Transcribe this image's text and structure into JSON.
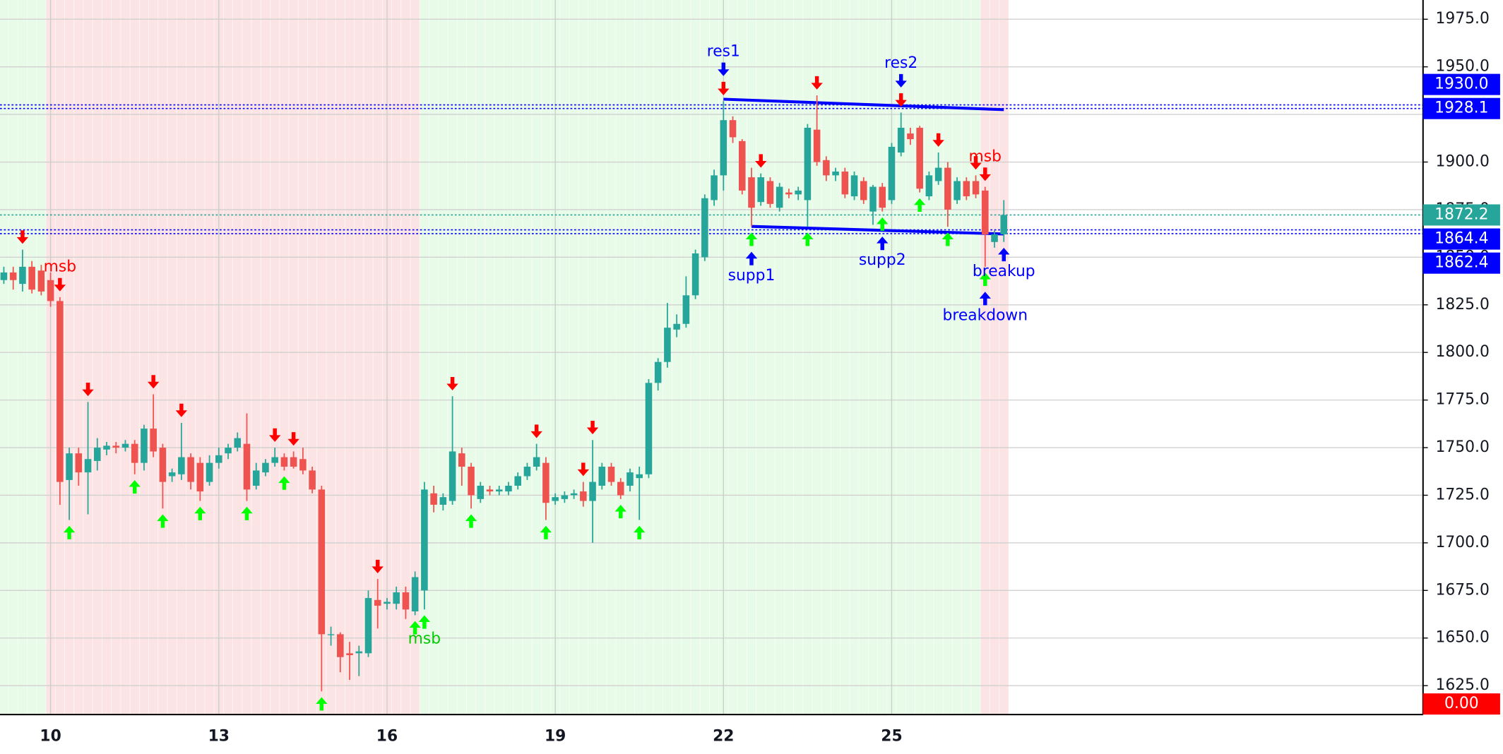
{
  "chart_data": {
    "type": "candlestick",
    "categories": [
      null,
      null,
      null,
      null,
      null,
      "10",
      null,
      null,
      null,
      null,
      null,
      null,
      null,
      null,
      null,
      null,
      null,
      null,
      null,
      null,
      null,
      null,
      null,
      "13",
      null,
      null,
      null,
      null,
      null,
      null,
      null,
      null,
      null,
      null,
      null,
      null,
      null,
      null,
      null,
      null,
      null,
      "16",
      null,
      null,
      null,
      null,
      null,
      null,
      null,
      null,
      null,
      null,
      null,
      null,
      null,
      null,
      null,
      null,
      null,
      "19",
      null,
      null,
      null,
      null,
      null,
      null,
      null,
      null,
      null,
      null,
      null,
      null,
      null,
      null,
      null,
      null,
      null,
      "22",
      null,
      null,
      null,
      null,
      null,
      null,
      null,
      null,
      null,
      null,
      null,
      null,
      null,
      null,
      null,
      null,
      null,
      "25",
      null,
      null,
      null,
      null,
      null,
      null,
      null,
      null,
      null,
      null,
      null,
      null
    ],
    "open": [
      1838,
      1842,
      1836,
      1845,
      1843,
      1838,
      1827,
      1733,
      1747,
      1737,
      1743,
      1749,
      1751,
      1750,
      1752,
      1742,
      1760,
      1750,
      1735,
      1736,
      1745,
      1742,
      1732,
      1742,
      1747,
      1750,
      1752,
      1730,
      1737,
      1742,
      1745,
      1745,
      1744,
      1738,
      1728,
      1652,
      1652,
      1642,
      1642,
      1642,
      1670,
      1668,
      1668,
      1674,
      1664,
      1675,
      1726,
      1720,
      1722,
      1747,
      1740,
      1723,
      1728,
      1727,
      1727,
      1730,
      1735,
      1740,
      1742,
      1722,
      1723,
      1725,
      1727,
      1722,
      1730,
      1740,
      1732,
      1730,
      1734,
      1736,
      1784,
      1795,
      1812,
      1815,
      1830,
      1850,
      1880,
      1893,
      1922,
      1911,
      1892,
      1879,
      1890,
      1876,
      1884,
      1883,
      1880,
      1917,
      1901,
      1893,
      1895,
      1882,
      1890,
      1874,
      1887,
      1880,
      1905,
      1915,
      1918,
      1882,
      1890,
      1897,
      1880,
      1890,
      1890,
      1885,
      1858,
      1862
    ],
    "high": [
      1845,
      1845,
      1854,
      1848,
      1846,
      1842,
      1829,
      1750,
      1750,
      1774,
      1755,
      1753,
      1753,
      1754,
      1754,
      1762,
      1778,
      1752,
      1739,
      1763,
      1747,
      1745,
      1746,
      1750,
      1752,
      1758,
      1768,
      1742,
      1744,
      1750,
      1747,
      1748,
      1750,
      1740,
      1730,
      1656,
      1653,
      1648,
      1646,
      1675,
      1681,
      1671,
      1677,
      1677,
      1685,
      1732,
      1730,
      1726,
      1777,
      1750,
      1742,
      1732,
      1730,
      1730,
      1732,
      1737,
      1742,
      1752,
      1745,
      1726,
      1727,
      1728,
      1732,
      1754,
      1742,
      1742,
      1734,
      1739,
      1740,
      1786,
      1797,
      1826,
      1820,
      1840,
      1854,
      1883,
      1896,
      1932,
      1924,
      1912,
      1897,
      1894,
      1892,
      1889,
      1886,
      1887,
      1920,
      1935,
      1903,
      1897,
      1897,
      1895,
      1892,
      1888,
      1889,
      1910,
      1926,
      1918,
      1919,
      1895,
      1905,
      1900,
      1892,
      1892,
      1893,
      1887,
      1864,
      1880
    ],
    "low": [
      1836,
      1833,
      1832,
      1831,
      1830,
      1824,
      1720,
      1712,
      1730,
      1715,
      1738,
      1746,
      1747,
      1748,
      1736,
      1738,
      1745,
      1718,
      1732,
      1733,
      1728,
      1722,
      1730,
      1739,
      1744,
      1748,
      1722,
      1728,
      1735,
      1740,
      1738,
      1739,
      1736,
      1726,
      1622,
      1646,
      1632,
      1628,
      1630,
      1640,
      1655,
      1665,
      1665,
      1660,
      1662,
      1665,
      1716,
      1717,
      1720,
      1730,
      1718,
      1721,
      1725,
      1725,
      1725,
      1728,
      1733,
      1738,
      1712,
      1720,
      1721,
      1723,
      1719,
      1700,
      1728,
      1730,
      1723,
      1727,
      1712,
      1734,
      1780,
      1792,
      1808,
      1813,
      1828,
      1848,
      1877,
      1885,
      1910,
      1883,
      1866,
      1877,
      1876,
      1874,
      1881,
      1880,
      1866,
      1898,
      1890,
      1890,
      1881,
      1880,
      1878,
      1867,
      1874,
      1878,
      1903,
      1909,
      1884,
      1880,
      1888,
      1866,
      1878,
      1880,
      1881,
      1845,
      1855,
      1858
    ],
    "close": [
      1842,
      1838,
      1845,
      1833,
      1832,
      1827,
      1732,
      1747,
      1737,
      1744,
      1750,
      1751,
      1750,
      1752,
      1742,
      1760,
      1748,
      1732,
      1737,
      1745,
      1732,
      1727,
      1742,
      1746,
      1750,
      1755,
      1728,
      1738,
      1742,
      1745,
      1740,
      1740,
      1738,
      1728,
      1652,
      1652,
      1640,
      1641,
      1643,
      1671,
      1667,
      1669,
      1674,
      1665,
      1682,
      1728,
      1720,
      1724,
      1748,
      1740,
      1725,
      1730,
      1727,
      1728,
      1730,
      1735,
      1740,
      1745,
      1721,
      1724,
      1725,
      1726,
      1722,
      1732,
      1740,
      1732,
      1725,
      1737,
      1736,
      1784,
      1795,
      1813,
      1815,
      1830,
      1852,
      1881,
      1893,
      1922,
      1913,
      1885,
      1876,
      1892,
      1878,
      1887,
      1883,
      1885,
      1918,
      1900,
      1893,
      1895,
      1883,
      1893,
      1880,
      1887,
      1876,
      1908,
      1918,
      1912,
      1886,
      1893,
      1897,
      1875,
      1890,
      1882,
      1883,
      1862,
      1862,
      1872.2
    ],
    "up_color": "#26a69a",
    "down_color": "#ef5350",
    "ylim": [
      1609.8,
      1985.1
    ],
    "yticks": [
      {
        "value": 1625,
        "label": "1625.0"
      },
      {
        "value": 1650,
        "label": "1650.0"
      },
      {
        "value": 1675,
        "label": "1675.0"
      },
      {
        "value": 1700,
        "label": "1700.0"
      },
      {
        "value": 1725,
        "label": "1725.0"
      },
      {
        "value": 1750,
        "label": "1750.0"
      },
      {
        "value": 1775,
        "label": "1775.0"
      },
      {
        "value": 1800,
        "label": "1800.0"
      },
      {
        "value": 1825,
        "label": "1825.0"
      },
      {
        "value": 1850,
        "label": "1850.0"
      },
      {
        "value": 1875,
        "label": "1875.0"
      },
      {
        "value": 1900,
        "label": "1900.0"
      },
      {
        "value": 1925,
        "label": "1925.0"
      },
      {
        "value": 1950,
        "label": "1950.0"
      },
      {
        "value": 1975,
        "label": "1975.0"
      }
    ],
    "grid": true,
    "sessions": [
      {
        "from": 0,
        "to": 4,
        "color": "#e8fbe8"
      },
      {
        "from": 5,
        "to": 44,
        "color": "#fde4e4"
      },
      {
        "from": 45,
        "to": 104,
        "color": "#e8fbe8"
      },
      {
        "from": 105,
        "to": 107,
        "color": "#fde4e4"
      }
    ],
    "levels": [
      {
        "value": 1928.1,
        "label": "1928.1",
        "color": "#0000ff"
      },
      {
        "value": 1930,
        "label": "1930.0",
        "color": "#0000ff"
      },
      {
        "value": 1872.2,
        "label": "1872.2",
        "color": "#26a69a"
      },
      {
        "value": 1864.4,
        "label": "1864.4",
        "color": "#0000ff"
      },
      {
        "value": 1862.4,
        "label": "1862.4",
        "color": "#0000ff"
      }
    ],
    "trendlines": [
      {
        "color": "#0000ff",
        "x": [
          77,
          107
        ],
        "y": [
          1933,
          1927.5
        ]
      },
      {
        "color": "#0000ff",
        "x": [
          80,
          107
        ],
        "y": [
          1866.2,
          1862.2
        ]
      }
    ],
    "signals": [
      {
        "color": "#ff0000",
        "direction": "down",
        "indices": [
          2,
          6,
          9,
          16,
          19,
          29,
          31,
          40,
          48,
          57,
          62,
          63,
          77,
          81,
          87,
          96,
          100,
          104,
          105
        ]
      },
      {
        "color": "#00ff00",
        "direction": "up",
        "indices": [
          7,
          14,
          17,
          21,
          26,
          30,
          34,
          44,
          45,
          50,
          58,
          66,
          68,
          80,
          86,
          94,
          98,
          101,
          105
        ]
      },
      {
        "color": "#0000ff",
        "direction": "down",
        "indices": [
          77,
          96
        ]
      },
      {
        "color": "#0000ff",
        "direction": "up",
        "indices": [
          80,
          94,
          105,
          107
        ]
      }
    ],
    "annotations": [
      {
        "text": "msb",
        "index": 6,
        "color": "#ff0000",
        "position": "above"
      },
      {
        "text": "msb",
        "index": 45,
        "color": "#00cc00",
        "position": "below"
      },
      {
        "text": "res1",
        "index": 77,
        "color": "#0000ff",
        "position": "above"
      },
      {
        "text": "res2",
        "index": 96,
        "color": "#0000ff",
        "position": "above"
      },
      {
        "text": "supp1",
        "index": 80,
        "color": "#0000ff",
        "position": "below"
      },
      {
        "text": "supp2",
        "index": 94,
        "color": "#0000ff",
        "position": "below"
      },
      {
        "text": "msb",
        "index": 105,
        "color": "#ff0000",
        "position": "above"
      },
      {
        "text": "breakup",
        "index": 107,
        "color": "#0000ff",
        "position": "below"
      },
      {
        "text": "breakdown",
        "index": 105,
        "color": "#0000ff",
        "position": "below"
      }
    ],
    "indicator_label": "0.00"
  }
}
